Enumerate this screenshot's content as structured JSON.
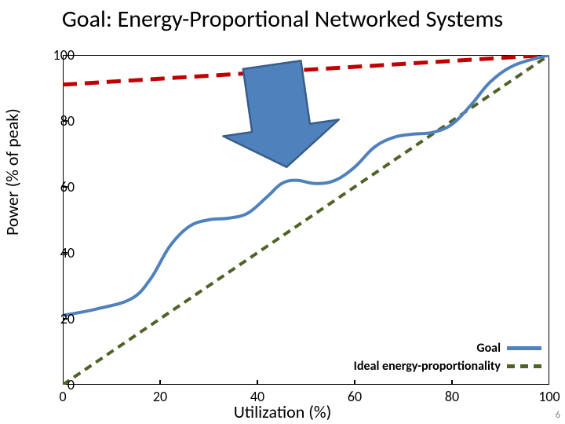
{
  "title": "Goal: Energy-Proportional Networked Systems",
  "xlabel": "Utilization (%)",
  "ylabel": "Power (% of peak)",
  "page_number": "6",
  "chart": {
    "type": "line",
    "xlim": [
      0,
      100
    ],
    "ylim": [
      0,
      100
    ],
    "xtick_step": 20,
    "ytick_step": 20,
    "xticks": [
      "0",
      "20",
      "40",
      "60",
      "80",
      "100"
    ],
    "yticks": [
      "0",
      "20",
      "40",
      "60",
      "80",
      "100"
    ],
    "background_color": "#ffffff",
    "axis_color": "#000000",
    "axis_width": 2,
    "tick_len": 6,
    "series": {
      "today": {
        "color": "#c00000",
        "width": 5,
        "dash": "18,10",
        "points": [
          [
            0,
            91
          ],
          [
            100,
            100
          ]
        ]
      },
      "ideal": {
        "color": "#4f6228",
        "width": 4,
        "dash": "10,7",
        "points": [
          [
            0,
            0
          ],
          [
            100,
            100
          ]
        ]
      },
      "goal": {
        "color": "#4f81bd",
        "width": 4,
        "dash": "none",
        "points": [
          [
            0,
            21
          ],
          [
            7,
            23
          ],
          [
            14,
            26
          ],
          [
            18,
            32
          ],
          [
            22,
            42
          ],
          [
            26,
            48
          ],
          [
            30,
            50
          ],
          [
            34,
            50.5
          ],
          [
            38,
            52
          ],
          [
            42,
            57
          ],
          [
            45,
            61
          ],
          [
            48,
            62
          ],
          [
            52,
            61
          ],
          [
            56,
            62
          ],
          [
            60,
            66
          ],
          [
            64,
            72
          ],
          [
            68,
            75
          ],
          [
            72,
            76
          ],
          [
            76,
            76.5
          ],
          [
            80,
            79
          ],
          [
            84,
            85
          ],
          [
            88,
            92
          ],
          [
            93,
            97
          ],
          [
            100,
            100
          ]
        ]
      }
    },
    "arrow": {
      "fill": "#4f81bd",
      "stroke": "#385d8a",
      "stroke_width": 2.5,
      "tail": [
        43,
        97
      ],
      "head": [
        46,
        66
      ],
      "shaft_width": 12,
      "head_width": 24,
      "head_len": 12
    }
  },
  "legend": {
    "items": [
      {
        "label": "Goal",
        "color": "#4f81bd",
        "width": 5,
        "dash": "solid"
      },
      {
        "label": "Ideal energy-proportionality",
        "color": "#4f6228",
        "width": 5,
        "dash": "dashed"
      }
    ]
  }
}
